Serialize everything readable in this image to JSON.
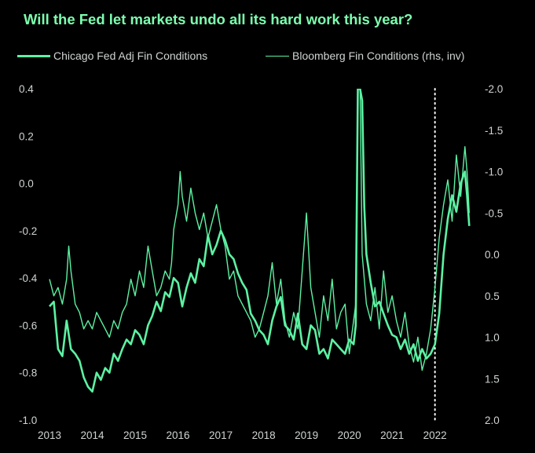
{
  "chart_data": {
    "type": "line",
    "title": "Will the Fed let markets undo all its hard work this year?",
    "colors": {
      "background": "#000000",
      "line": "#5cf2a3",
      "title": "#7dffb0",
      "text": "#cfd4d2",
      "marker": "#ffffff"
    },
    "legend_position": "top",
    "grid": false,
    "x_ticks": [
      "2013",
      "2014",
      "2015",
      "2016",
      "2017",
      "2018",
      "2019",
      "2020",
      "2021",
      "2022"
    ],
    "xlim": [
      2013.0,
      2022.85
    ],
    "y_left": {
      "ticks": [
        "0.4",
        "0.2",
        "0.0",
        "-0.2",
        "-0.4",
        "-0.6",
        "-0.8",
        "-1.0"
      ],
      "ylim": [
        -1.0,
        0.4
      ]
    },
    "y_right": {
      "ticks": [
        "-2.0",
        "-1.5",
        "-1.0",
        "-0.5",
        "0.0",
        "0.5",
        "1.0",
        "1.5",
        "2.0"
      ],
      "ylim": [
        -2.0,
        2.0
      ],
      "inverted": true
    },
    "vertical_marker": {
      "x": 2022.0,
      "style": "dotted"
    },
    "series": [
      {
        "name": "Chicago Fed Adj Fin Conditions",
        "axis": "left",
        "x": [
          2013.0,
          2013.1,
          2013.2,
          2013.3,
          2013.4,
          2013.5,
          2013.6,
          2013.7,
          2013.8,
          2013.9,
          2014.0,
          2014.1,
          2014.2,
          2014.3,
          2014.4,
          2014.5,
          2014.6,
          2014.7,
          2014.8,
          2014.9,
          2015.0,
          2015.1,
          2015.2,
          2015.3,
          2015.4,
          2015.5,
          2015.6,
          2015.7,
          2015.8,
          2015.9,
          2016.0,
          2016.1,
          2016.2,
          2016.3,
          2016.4,
          2016.5,
          2016.6,
          2016.7,
          2016.8,
          2016.9,
          2017.0,
          2017.1,
          2017.2,
          2017.3,
          2017.4,
          2017.5,
          2017.6,
          2017.7,
          2017.8,
          2017.9,
          2018.0,
          2018.1,
          2018.2,
          2018.3,
          2018.4,
          2018.5,
          2018.6,
          2018.7,
          2018.8,
          2018.9,
          2019.0,
          2019.1,
          2019.2,
          2019.3,
          2019.4,
          2019.5,
          2019.6,
          2019.7,
          2019.8,
          2019.9,
          2020.0,
          2020.1,
          2020.15,
          2020.2,
          2020.25,
          2020.3,
          2020.35,
          2020.4,
          2020.5,
          2020.6,
          2020.7,
          2020.8,
          2020.9,
          2021.0,
          2021.1,
          2021.2,
          2021.3,
          2021.4,
          2021.5,
          2021.6,
          2021.7,
          2021.8,
          2021.9,
          2022.0,
          2022.1,
          2022.2,
          2022.3,
          2022.4,
          2022.5,
          2022.6,
          2022.7,
          2022.75,
          2022.8
        ],
        "y": [
          -0.52,
          -0.5,
          -0.7,
          -0.73,
          -0.58,
          -0.7,
          -0.72,
          -0.75,
          -0.82,
          -0.86,
          -0.88,
          -0.8,
          -0.83,
          -0.78,
          -0.8,
          -0.72,
          -0.75,
          -0.7,
          -0.66,
          -0.68,
          -0.62,
          -0.64,
          -0.68,
          -0.6,
          -0.56,
          -0.5,
          -0.54,
          -0.46,
          -0.48,
          -0.4,
          -0.42,
          -0.52,
          -0.44,
          -0.38,
          -0.42,
          -0.32,
          -0.35,
          -0.22,
          -0.3,
          -0.26,
          -0.2,
          -0.24,
          -0.3,
          -0.32,
          -0.38,
          -0.42,
          -0.45,
          -0.55,
          -0.58,
          -0.62,
          -0.64,
          -0.68,
          -0.58,
          -0.52,
          -0.48,
          -0.6,
          -0.62,
          -0.66,
          -0.55,
          -0.68,
          -0.7,
          -0.6,
          -0.62,
          -0.72,
          -0.7,
          -0.74,
          -0.66,
          -0.68,
          -0.7,
          -0.72,
          -0.66,
          -0.68,
          -0.6,
          0.4,
          0.4,
          0.35,
          -0.1,
          -0.3,
          -0.42,
          -0.52,
          -0.5,
          -0.55,
          -0.6,
          -0.64,
          -0.65,
          -0.7,
          -0.66,
          -0.72,
          -0.68,
          -0.75,
          -0.7,
          -0.74,
          -0.72,
          -0.68,
          -0.55,
          -0.3,
          -0.15,
          -0.05,
          -0.12,
          0.0,
          0.05,
          -0.05,
          -0.18
        ]
      },
      {
        "name": "Bloomberg Fin Conditions (rhs, inv)",
        "axis": "right",
        "x": [
          2013.0,
          2013.1,
          2013.2,
          2013.3,
          2013.4,
          2013.45,
          2013.5,
          2013.6,
          2013.7,
          2013.8,
          2013.9,
          2014.0,
          2014.1,
          2014.2,
          2014.3,
          2014.4,
          2014.5,
          2014.6,
          2014.7,
          2014.8,
          2014.9,
          2015.0,
          2015.1,
          2015.2,
          2015.3,
          2015.4,
          2015.5,
          2015.6,
          2015.7,
          2015.8,
          2015.85,
          2015.9,
          2016.0,
          2016.05,
          2016.1,
          2016.2,
          2016.3,
          2016.4,
          2016.5,
          2016.6,
          2016.7,
          2016.8,
          2016.9,
          2017.0,
          2017.1,
          2017.2,
          2017.3,
          2017.4,
          2017.5,
          2017.6,
          2017.7,
          2017.8,
          2017.9,
          2018.0,
          2018.1,
          2018.2,
          2018.3,
          2018.4,
          2018.5,
          2018.6,
          2018.7,
          2018.8,
          2018.9,
          2019.0,
          2019.1,
          2019.2,
          2019.3,
          2019.4,
          2019.5,
          2019.6,
          2019.7,
          2019.8,
          2019.9,
          2020.0,
          2020.1,
          2020.15,
          2020.2,
          2020.25,
          2020.3,
          2020.4,
          2020.5,
          2020.6,
          2020.7,
          2020.8,
          2020.9,
          2021.0,
          2021.1,
          2021.2,
          2021.3,
          2021.4,
          2021.5,
          2021.6,
          2021.7,
          2021.8,
          2021.9,
          2022.0,
          2022.1,
          2022.2,
          2022.3,
          2022.4,
          2022.5,
          2022.6,
          2022.7,
          2022.75,
          2022.8
        ],
        "y": [
          0.3,
          0.5,
          0.4,
          0.6,
          0.3,
          -0.1,
          0.2,
          0.6,
          0.7,
          0.9,
          0.8,
          0.9,
          0.7,
          0.8,
          0.9,
          1.0,
          0.8,
          0.9,
          0.7,
          0.6,
          0.3,
          0.5,
          0.2,
          0.4,
          -0.1,
          0.2,
          0.5,
          0.4,
          0.2,
          0.3,
          0.1,
          -0.3,
          -0.6,
          -1.0,
          -0.7,
          -0.4,
          -0.8,
          -0.5,
          -0.3,
          -0.5,
          -0.2,
          -0.4,
          -0.6,
          -0.3,
          -0.1,
          0.3,
          0.2,
          0.5,
          0.6,
          0.7,
          0.8,
          1.0,
          0.9,
          0.7,
          0.5,
          0.1,
          0.6,
          0.3,
          0.8,
          1.0,
          0.7,
          0.9,
          0.2,
          -0.5,
          0.4,
          0.7,
          1.0,
          0.5,
          0.8,
          0.3,
          0.9,
          0.7,
          0.6,
          1.2,
          0.8,
          0.6,
          -2.0,
          -2.0,
          0.0,
          0.6,
          0.8,
          0.4,
          0.9,
          0.2,
          0.7,
          0.5,
          0.8,
          1.0,
          0.7,
          1.1,
          1.3,
          1.0,
          1.4,
          1.2,
          0.9,
          0.4,
          -0.2,
          -0.6,
          -0.9,
          -0.4,
          -1.2,
          -0.7,
          -1.3,
          -1.0,
          -0.5
        ]
      }
    ]
  }
}
